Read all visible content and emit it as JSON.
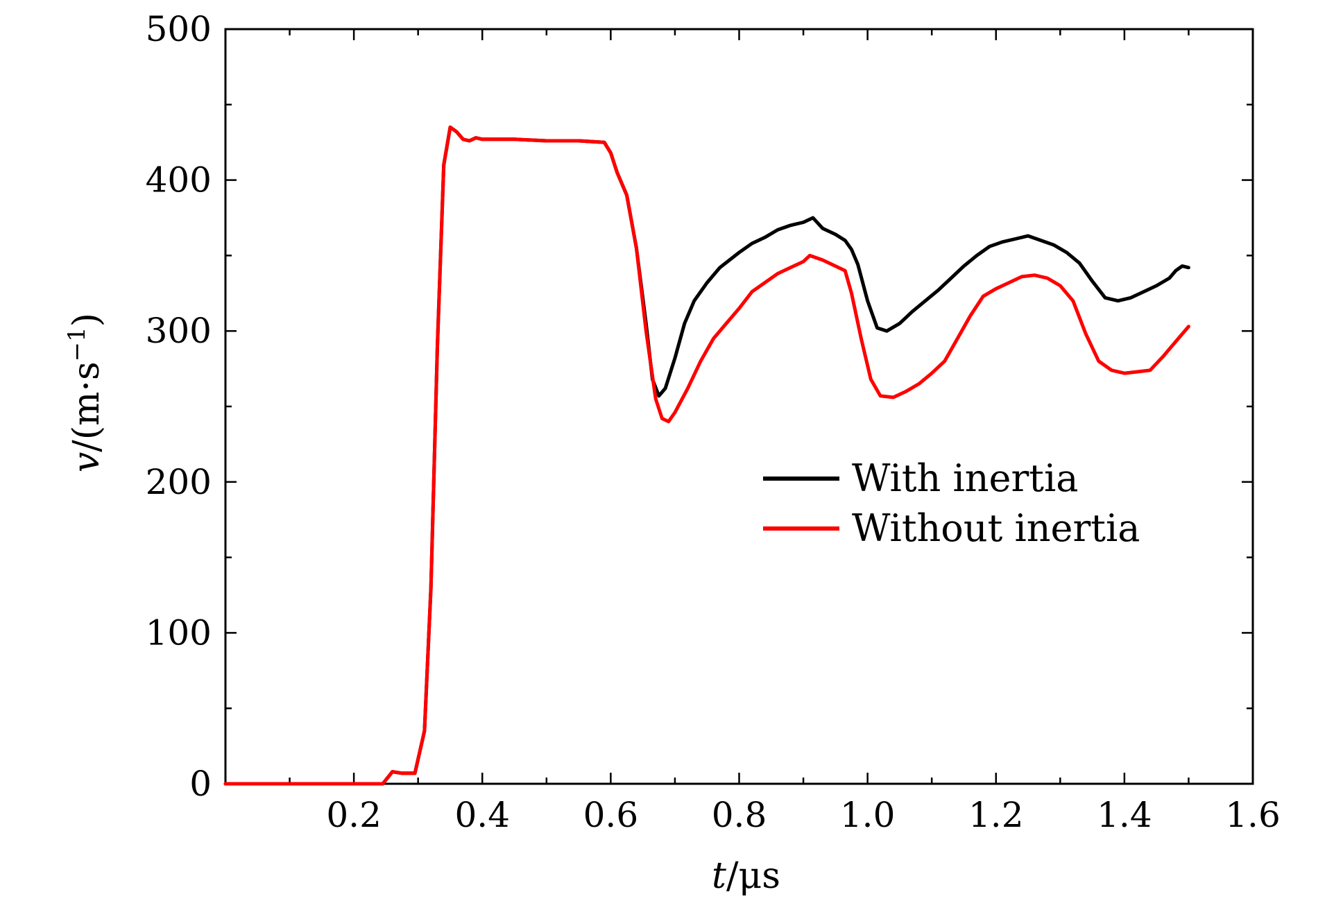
{
  "chart_data": {
    "type": "line",
    "xlabel": {
      "var": "t",
      "unit": "/μs"
    },
    "ylabel": {
      "var": "v",
      "unit": "/(m·s",
      "sup": "−1",
      "close": ")"
    },
    "xlim": [
      0,
      1.6
    ],
    "ylim": [
      0,
      500
    ],
    "x_ticks": [
      0.2,
      0.4,
      0.6,
      0.8,
      1.0,
      1.2,
      1.4,
      1.6
    ],
    "x_tick_labels": [
      "0.2",
      "0.4",
      "0.6",
      "0.8",
      "1.0",
      "1.2",
      "1.4",
      "1.6"
    ],
    "y_ticks": [
      0,
      100,
      200,
      300,
      400,
      500
    ],
    "y_tick_labels": [
      "0",
      "100",
      "200",
      "300",
      "400",
      "500"
    ],
    "grid": false,
    "legend": "center-right",
    "series": [
      {
        "name": "With inertia",
        "color": "#000000",
        "points": [
          [
            0.0,
            0
          ],
          [
            0.1,
            0
          ],
          [
            0.2,
            0
          ],
          [
            0.245,
            0
          ],
          [
            0.26,
            8
          ],
          [
            0.275,
            7
          ],
          [
            0.295,
            7
          ],
          [
            0.31,
            35
          ],
          [
            0.32,
            130
          ],
          [
            0.33,
            290
          ],
          [
            0.34,
            410
          ],
          [
            0.35,
            435
          ],
          [
            0.36,
            432
          ],
          [
            0.37,
            427
          ],
          [
            0.38,
            426
          ],
          [
            0.39,
            428
          ],
          [
            0.4,
            427
          ],
          [
            0.45,
            427
          ],
          [
            0.5,
            426
          ],
          [
            0.55,
            426
          ],
          [
            0.59,
            425
          ],
          [
            0.6,
            418
          ],
          [
            0.61,
            405
          ],
          [
            0.625,
            390
          ],
          [
            0.64,
            355
          ],
          [
            0.655,
            305
          ],
          [
            0.665,
            268
          ],
          [
            0.675,
            257
          ],
          [
            0.685,
            262
          ],
          [
            0.7,
            282
          ],
          [
            0.715,
            305
          ],
          [
            0.73,
            320
          ],
          [
            0.75,
            332
          ],
          [
            0.77,
            342
          ],
          [
            0.8,
            352
          ],
          [
            0.82,
            358
          ],
          [
            0.84,
            362
          ],
          [
            0.86,
            367
          ],
          [
            0.88,
            370
          ],
          [
            0.9,
            372
          ],
          [
            0.915,
            375
          ],
          [
            0.93,
            368
          ],
          [
            0.95,
            364
          ],
          [
            0.965,
            360
          ],
          [
            0.975,
            354
          ],
          [
            0.985,
            344
          ],
          [
            1.0,
            320
          ],
          [
            1.015,
            302
          ],
          [
            1.03,
            300
          ],
          [
            1.05,
            305
          ],
          [
            1.07,
            313
          ],
          [
            1.09,
            320
          ],
          [
            1.11,
            327
          ],
          [
            1.13,
            335
          ],
          [
            1.15,
            343
          ],
          [
            1.17,
            350
          ],
          [
            1.19,
            356
          ],
          [
            1.21,
            359
          ],
          [
            1.23,
            361
          ],
          [
            1.25,
            363
          ],
          [
            1.27,
            360
          ],
          [
            1.29,
            357
          ],
          [
            1.31,
            352
          ],
          [
            1.33,
            345
          ],
          [
            1.35,
            333
          ],
          [
            1.37,
            322
          ],
          [
            1.39,
            320
          ],
          [
            1.41,
            322
          ],
          [
            1.43,
            326
          ],
          [
            1.45,
            330
          ],
          [
            1.47,
            335
          ],
          [
            1.48,
            340
          ],
          [
            1.49,
            343
          ],
          [
            1.5,
            342
          ]
        ]
      },
      {
        "name": "Without inertia",
        "color": "#ff0000",
        "points": [
          [
            0.0,
            0
          ],
          [
            0.1,
            0
          ],
          [
            0.2,
            0
          ],
          [
            0.245,
            0
          ],
          [
            0.26,
            8
          ],
          [
            0.275,
            7
          ],
          [
            0.295,
            7
          ],
          [
            0.31,
            35
          ],
          [
            0.32,
            130
          ],
          [
            0.33,
            290
          ],
          [
            0.34,
            410
          ],
          [
            0.35,
            435
          ],
          [
            0.36,
            432
          ],
          [
            0.37,
            427
          ],
          [
            0.38,
            426
          ],
          [
            0.39,
            428
          ],
          [
            0.4,
            427
          ],
          [
            0.45,
            427
          ],
          [
            0.5,
            426
          ],
          [
            0.55,
            426
          ],
          [
            0.59,
            425
          ],
          [
            0.6,
            418
          ],
          [
            0.61,
            405
          ],
          [
            0.625,
            390
          ],
          [
            0.64,
            355
          ],
          [
            0.655,
            300
          ],
          [
            0.67,
            255
          ],
          [
            0.68,
            242
          ],
          [
            0.69,
            240
          ],
          [
            0.7,
            246
          ],
          [
            0.72,
            262
          ],
          [
            0.74,
            280
          ],
          [
            0.76,
            295
          ],
          [
            0.78,
            305
          ],
          [
            0.8,
            315
          ],
          [
            0.82,
            326
          ],
          [
            0.84,
            332
          ],
          [
            0.86,
            338
          ],
          [
            0.88,
            342
          ],
          [
            0.9,
            346
          ],
          [
            0.91,
            350
          ],
          [
            0.93,
            347
          ],
          [
            0.95,
            343
          ],
          [
            0.965,
            340
          ],
          [
            0.975,
            325
          ],
          [
            0.99,
            295
          ],
          [
            1.005,
            268
          ],
          [
            1.02,
            257
          ],
          [
            1.04,
            256
          ],
          [
            1.06,
            260
          ],
          [
            1.08,
            265
          ],
          [
            1.1,
            272
          ],
          [
            1.12,
            280
          ],
          [
            1.14,
            295
          ],
          [
            1.16,
            310
          ],
          [
            1.18,
            323
          ],
          [
            1.2,
            328
          ],
          [
            1.22,
            332
          ],
          [
            1.24,
            336
          ],
          [
            1.26,
            337
          ],
          [
            1.28,
            335
          ],
          [
            1.3,
            330
          ],
          [
            1.32,
            320
          ],
          [
            1.34,
            298
          ],
          [
            1.36,
            280
          ],
          [
            1.38,
            274
          ],
          [
            1.4,
            272
          ],
          [
            1.42,
            273
          ],
          [
            1.44,
            274
          ],
          [
            1.46,
            283
          ],
          [
            1.48,
            293
          ],
          [
            1.5,
            303
          ]
        ]
      }
    ]
  }
}
